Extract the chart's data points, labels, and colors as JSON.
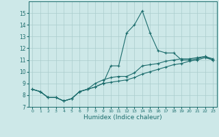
{
  "xlabel": "Humidex (Indice chaleur)",
  "xlim": [
    -0.5,
    23.5
  ],
  "ylim": [
    7,
    16
  ],
  "yticks": [
    7,
    8,
    9,
    10,
    11,
    12,
    13,
    14,
    15
  ],
  "xticks": [
    0,
    1,
    2,
    3,
    4,
    5,
    6,
    7,
    8,
    9,
    10,
    11,
    12,
    13,
    14,
    15,
    16,
    17,
    18,
    19,
    20,
    21,
    22,
    23
  ],
  "bg_color": "#cde8e8",
  "grid_color": "#aacccc",
  "line_color": "#1a6b6b",
  "series": [
    [
      8.5,
      8.3,
      7.8,
      7.8,
      7.5,
      7.7,
      8.3,
      8.5,
      8.7,
      9.0,
      10.5,
      10.5,
      13.3,
      14.0,
      15.2,
      13.3,
      11.8,
      11.6,
      11.6,
      11.0,
      11.0,
      11.1,
      11.3,
      11.0
    ],
    [
      8.5,
      8.3,
      7.8,
      7.8,
      7.5,
      7.7,
      8.3,
      8.5,
      9.0,
      9.3,
      9.5,
      9.6,
      9.6,
      9.9,
      10.5,
      10.6,
      10.7,
      10.9,
      11.0,
      11.1,
      11.1,
      11.2,
      11.3,
      11.1
    ],
    [
      8.5,
      8.3,
      7.8,
      7.8,
      7.5,
      7.7,
      8.3,
      8.5,
      8.7,
      9.0,
      9.1,
      9.2,
      9.3,
      9.5,
      9.8,
      10.0,
      10.2,
      10.4,
      10.6,
      10.7,
      10.9,
      11.0,
      11.2,
      11.0
    ]
  ]
}
